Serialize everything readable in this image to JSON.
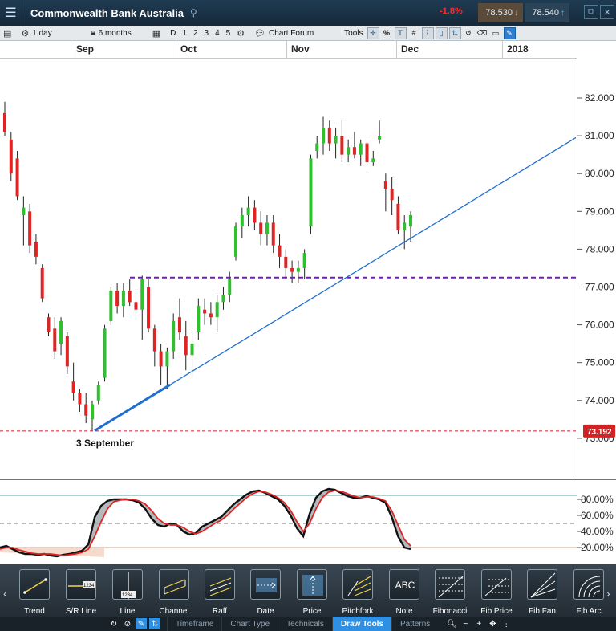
{
  "titlebar": {
    "menu_icon": "hamburger-icon",
    "title": "Commonwealth Bank Australia",
    "change": "-1.8%",
    "sell_price": "78.530",
    "buy_price": "78.540"
  },
  "toolbar": {
    "interval": "1 day",
    "range": "6 months",
    "periods": [
      "D",
      "1",
      "2",
      "3",
      "4",
      "5"
    ],
    "chart_forum": "Chart Forum",
    "tools_label": "Tools"
  },
  "months": [
    "Sep",
    "Oct",
    "Nov",
    "Dec",
    "2018"
  ],
  "chart_data": {
    "type": "candlestick",
    "y_ticks": [
      "82.000",
      "81.000",
      "80.000",
      "79.000",
      "78.000",
      "77.000",
      "76.000",
      "75.000",
      "74.000",
      "73.000"
    ],
    "ylim": [
      72.4,
      83.0
    ],
    "current_price_label": "73.192",
    "current_price": 73.192,
    "resistance_level": 77.25,
    "annotation": "3 September",
    "trendline": {
      "start": 73.2,
      "end": 80.95
    },
    "candles": [
      [
        81.6,
        81.9,
        81.0,
        81.1
      ],
      [
        80.9,
        81.1,
        79.8,
        80.0
      ],
      [
        80.4,
        80.6,
        79.3,
        79.4
      ],
      [
        78.9,
        79.4,
        78.1,
        79.1
      ],
      [
        79.0,
        79.2,
        77.9,
        78.1
      ],
      [
        78.2,
        78.4,
        77.6,
        77.8
      ],
      [
        77.5,
        77.6,
        76.6,
        76.7
      ],
      [
        76.2,
        76.3,
        75.7,
        75.8
      ],
      [
        75.9,
        76.2,
        75.1,
        75.3
      ],
      [
        75.5,
        76.2,
        75.2,
        76.1
      ],
      [
        75.7,
        75.8,
        74.7,
        74.9
      ],
      [
        74.5,
        75.0,
        74.0,
        74.2
      ],
      [
        74.2,
        74.3,
        73.7,
        73.9
      ],
      [
        73.9,
        74.2,
        73.4,
        73.6
      ],
      [
        73.5,
        74.0,
        73.2,
        73.9
      ],
      [
        74.0,
        74.5,
        73.9,
        74.4
      ],
      [
        74.6,
        76.0,
        74.5,
        75.9
      ],
      [
        76.1,
        77.0,
        76.0,
        76.9
      ],
      [
        76.9,
        77.1,
        76.3,
        76.5
      ],
      [
        76.5,
        77.1,
        76.2,
        76.9
      ],
      [
        76.9,
        77.2,
        76.5,
        76.6
      ],
      [
        76.6,
        76.9,
        76.1,
        76.4
      ],
      [
        76.4,
        77.3,
        75.6,
        77.2
      ],
      [
        77.0,
        77.2,
        75.8,
        75.9
      ],
      [
        75.9,
        76.0,
        74.9,
        75.3
      ],
      [
        75.3,
        75.5,
        74.4,
        74.9
      ],
      [
        74.9,
        75.4,
        74.3,
        75.3
      ],
      [
        75.3,
        76.3,
        75.1,
        76.1
      ],
      [
        76.2,
        76.7,
        75.6,
        75.8
      ],
      [
        75.7,
        76.1,
        74.8,
        75.2
      ],
      [
        75.2,
        75.8,
        74.6,
        75.5
      ],
      [
        75.8,
        76.7,
        75.6,
        76.5
      ],
      [
        76.4,
        76.7,
        76.0,
        76.3
      ],
      [
        76.3,
        76.6,
        76.0,
        76.2
      ],
      [
        76.2,
        76.8,
        75.8,
        76.6
      ],
      [
        76.6,
        77.0,
        76.4,
        76.8
      ],
      [
        76.8,
        77.4,
        76.6,
        77.2
      ],
      [
        77.8,
        78.7,
        77.7,
        78.6
      ],
      [
        78.6,
        79.1,
        78.3,
        78.9
      ],
      [
        78.9,
        79.4,
        78.6,
        79.1
      ],
      [
        79.1,
        79.3,
        78.5,
        78.7
      ],
      [
        78.7,
        79.0,
        78.1,
        78.4
      ],
      [
        78.4,
        78.9,
        78.1,
        78.7
      ],
      [
        78.7,
        78.9,
        77.9,
        78.1
      ],
      [
        78.1,
        78.4,
        77.5,
        77.8
      ],
      [
        77.8,
        78.0,
        77.2,
        77.5
      ],
      [
        77.5,
        77.7,
        77.1,
        77.4
      ],
      [
        77.4,
        77.7,
        77.1,
        77.5
      ],
      [
        77.5,
        78.0,
        77.2,
        77.9
      ],
      [
        78.6,
        80.5,
        78.4,
        80.4
      ],
      [
        80.6,
        81.0,
        80.4,
        80.8
      ],
      [
        80.8,
        81.5,
        80.5,
        81.2
      ],
      [
        81.2,
        81.4,
        80.6,
        80.8
      ],
      [
        80.8,
        81.2,
        80.4,
        81.0
      ],
      [
        81.0,
        81.4,
        80.3,
        80.5
      ],
      [
        80.5,
        80.9,
        80.3,
        80.7
      ],
      [
        80.7,
        81.1,
        80.4,
        80.5
      ],
      [
        80.5,
        80.9,
        80.2,
        80.8
      ],
      [
        80.8,
        80.9,
        80.1,
        80.3
      ],
      [
        80.3,
        80.6,
        80.2,
        80.4
      ],
      [
        80.9,
        81.4,
        80.8,
        81.0
      ],
      [
        79.8,
        80.0,
        79.0,
        79.6
      ],
      [
        79.6,
        79.9,
        78.9,
        79.3
      ],
      [
        79.2,
        79.4,
        78.4,
        78.5
      ],
      [
        78.5,
        78.9,
        78.0,
        78.7
      ],
      [
        78.6,
        79.0,
        78.2,
        78.9
      ]
    ]
  },
  "stochastic": {
    "y_ticks": [
      "80.00%",
      "60.00%",
      "40.00%",
      "20.00%"
    ],
    "k": [
      20,
      22,
      18,
      14,
      12,
      12,
      11,
      12,
      10,
      9,
      11,
      12,
      14,
      16,
      24,
      58,
      72,
      78,
      80,
      80,
      80,
      79,
      76,
      68,
      56,
      48,
      46,
      50,
      48,
      40,
      36,
      38,
      46,
      50,
      54,
      58,
      66,
      74,
      80,
      86,
      90,
      91,
      88,
      84,
      80,
      72,
      60,
      44,
      34,
      62,
      82,
      90,
      93,
      92,
      88,
      84,
      82,
      82,
      84,
      82,
      80,
      76,
      58,
      34,
      20,
      18
    ],
    "d": [
      18,
      20,
      20,
      17,
      15,
      13,
      12,
      12,
      12,
      11,
      10,
      11,
      12,
      14,
      18,
      34,
      52,
      68,
      77,
      79,
      80,
      80,
      78,
      74,
      66,
      56,
      50,
      48,
      48,
      45,
      40,
      37,
      40,
      45,
      50,
      54,
      60,
      68,
      75,
      82,
      87,
      90,
      89,
      86,
      82,
      76,
      66,
      52,
      40,
      50,
      68,
      82,
      89,
      91,
      90,
      87,
      84,
      82,
      83,
      83,
      81,
      78,
      66,
      48,
      30,
      22
    ]
  },
  "draw_tools": [
    {
      "label": "Trend",
      "icon": "trend-line-icon"
    },
    {
      "label": "S/R Line",
      "icon": "sr-line-icon"
    },
    {
      "label": "Line",
      "icon": "vertical-line-icon"
    },
    {
      "label": "Channel",
      "icon": "channel-icon"
    },
    {
      "label": "Raff",
      "icon": "raff-channel-icon"
    },
    {
      "label": "Date",
      "icon": "date-range-icon"
    },
    {
      "label": "Price",
      "icon": "price-range-icon"
    },
    {
      "label": "Pitchfork",
      "icon": "pitchfork-icon"
    },
    {
      "label": "Note",
      "icon": "note-icon",
      "text": "ABC"
    },
    {
      "label": "Fibonacci",
      "icon": "fibonacci-icon"
    },
    {
      "label": "Fib Price",
      "icon": "fib-price-icon"
    },
    {
      "label": "Fib Fan",
      "icon": "fib-fan-icon"
    },
    {
      "label": "Fib Arc",
      "icon": "fib-arc-icon"
    }
  ],
  "tabs": [
    "Timeframe",
    "Chart Type",
    "Technicals",
    "Draw Tools",
    "Patterns"
  ],
  "active_tab": "Draw Tools",
  "colors": {
    "bull": "#2fbf2f",
    "bear": "#e02424",
    "trend": "#1e6fd0",
    "resistance": "#7a16c9",
    "price_line": "#d32222",
    "accent": "#2f90e3"
  }
}
